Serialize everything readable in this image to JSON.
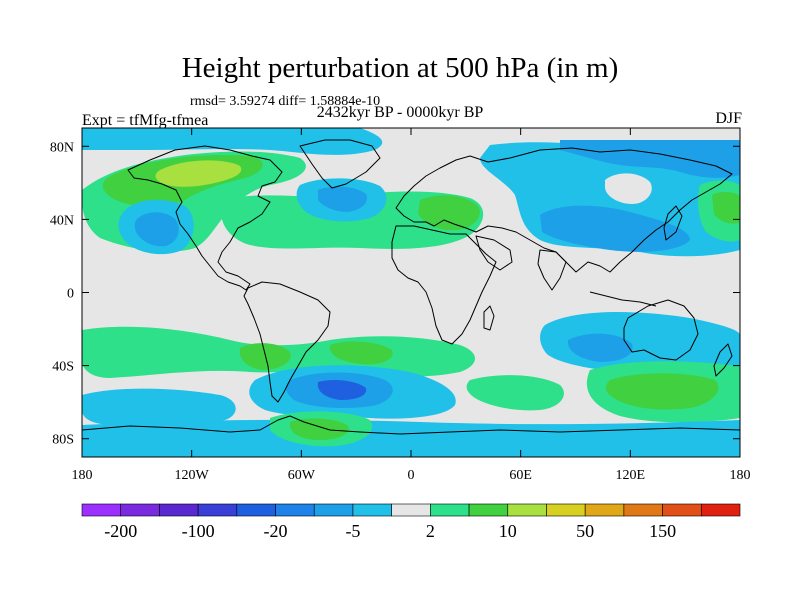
{
  "title": "Height perturbation at 500 hPa (in m)",
  "stats": "rmsd= 3.59274 diff= 1.58884e-10",
  "experiment": "Expt = tfMfg-tfmea",
  "period": "2432kyr BP - 0000kyr BP",
  "season": "DJF",
  "map": {
    "lon_range": [
      -180,
      180
    ],
    "lat_range": [
      -90,
      90
    ],
    "lon_ticks": [
      {
        "value": -180,
        "label": "180"
      },
      {
        "value": -120,
        "label": "120W"
      },
      {
        "value": -60,
        "label": "60W"
      },
      {
        "value": 0,
        "label": "0"
      },
      {
        "value": 60,
        "label": "60E"
      },
      {
        "value": 120,
        "label": "120E"
      },
      {
        "value": 180,
        "label": "180"
      }
    ],
    "lat_ticks": [
      {
        "value": 80,
        "label": "80N"
      },
      {
        "value": 40,
        "label": "40N"
      },
      {
        "value": 0,
        "label": "0"
      },
      {
        "value": -40,
        "label": "40S"
      },
      {
        "value": -80,
        "label": "80S"
      }
    ],
    "background_color": "#e6e6e6"
  },
  "colorbar": {
    "colors": [
      "#9b30ff",
      "#7a2be0",
      "#5a28d0",
      "#3a3fd8",
      "#1f60e0",
      "#1e82e8",
      "#1ea0e8",
      "#20c0e8",
      "#e6e6e6",
      "#2ee08a",
      "#40d040",
      "#a8e040",
      "#d8d020",
      "#e0a818",
      "#e07818",
      "#e05018",
      "#e02010"
    ],
    "labels": [
      {
        "boundary": 1,
        "text": "-200"
      },
      {
        "boundary": 3,
        "text": "-100"
      },
      {
        "boundary": 5,
        "text": "-20"
      },
      {
        "boundary": 7,
        "text": "-5"
      },
      {
        "boundary": 9,
        "text": "2"
      },
      {
        "boundary": 11,
        "text": "10"
      },
      {
        "boundary": 13,
        "text": "50"
      },
      {
        "boundary": 15,
        "text": "150"
      }
    ]
  }
}
